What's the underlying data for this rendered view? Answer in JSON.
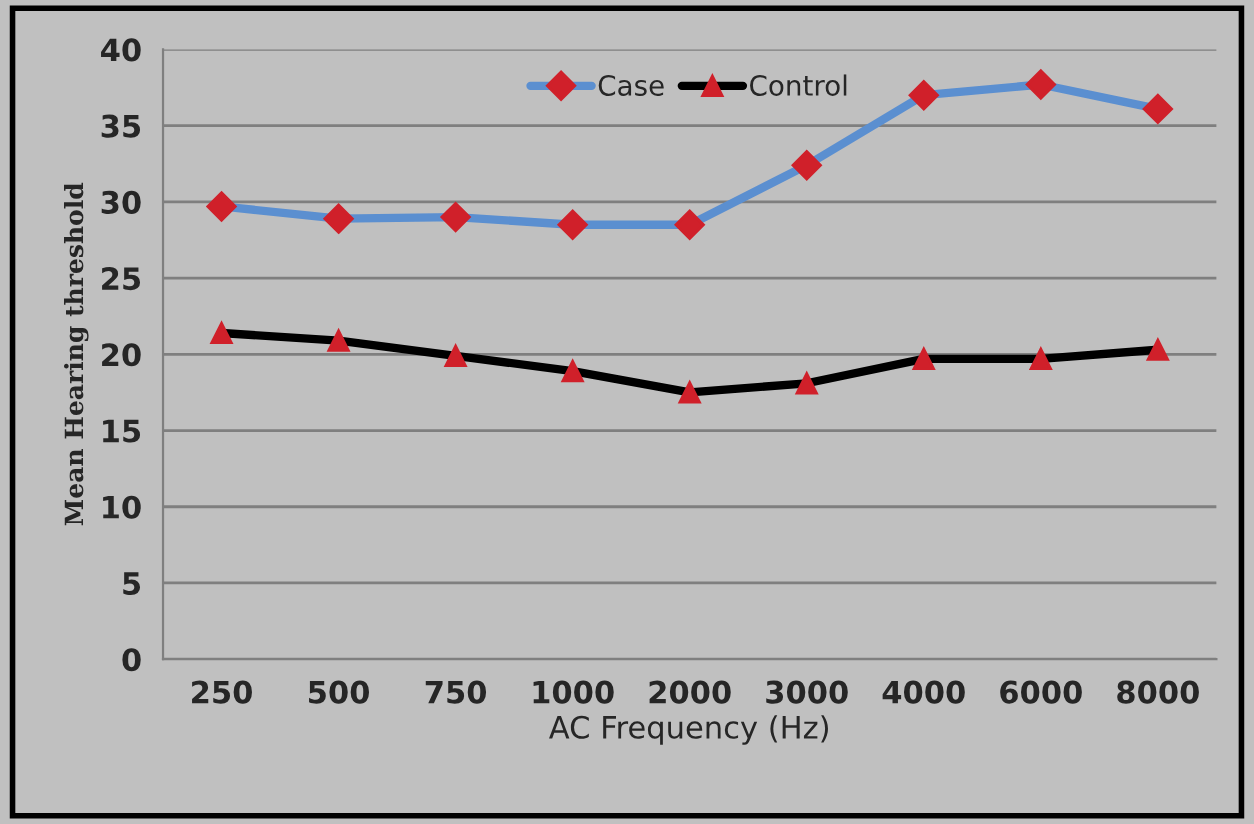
{
  "chart_data": {
    "type": "line",
    "xlabel": "AC Frequency (Hz)",
    "ylabel": "Mean Hearing threshold",
    "categories": [
      "250",
      "500",
      "750",
      "1000",
      "2000",
      "3000",
      "4000",
      "6000",
      "8000"
    ],
    "series": [
      {
        "name": "Case",
        "color": "#5b8fd0",
        "marker": "diamond",
        "values": [
          29.7,
          28.9,
          29.0,
          28.5,
          28.5,
          32.4,
          37.0,
          37.7,
          36.1
        ]
      },
      {
        "name": "Control",
        "color": "#000000",
        "marker": "triangle",
        "values": [
          21.4,
          20.9,
          19.9,
          18.9,
          17.5,
          18.1,
          19.7,
          19.7,
          20.3
        ]
      }
    ],
    "ylim": [
      0,
      40
    ],
    "yticks": [
      0,
      5,
      10,
      15,
      20,
      25,
      30,
      35,
      40
    ],
    "grid": "y",
    "legend": "top",
    "line_style": "solid"
  }
}
